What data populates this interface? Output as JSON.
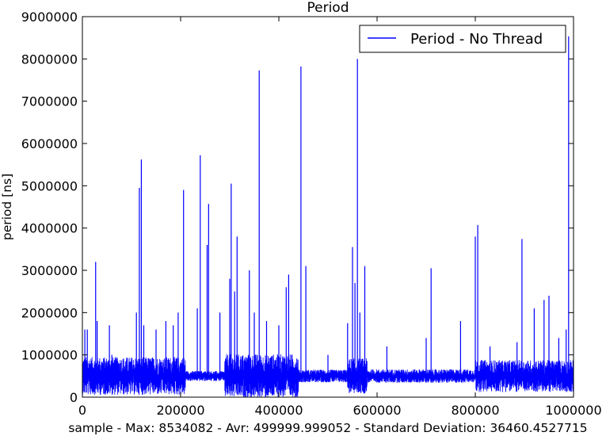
{
  "chart_data": {
    "type": "line",
    "title": "Period",
    "xlabel": "sample - Max: 8534082 - Avr: 499999.999052 - Standard Deviation: 36460.4527715",
    "ylabel": "period [ns]",
    "xlim": [
      0,
      1000000
    ],
    "ylim": [
      0,
      9000000
    ],
    "x_ticks": [
      "0",
      "200000",
      "400000",
      "600000",
      "800000",
      "1000000"
    ],
    "y_ticks": [
      "0",
      "1000000",
      "2000000",
      "3000000",
      "4000000",
      "5000000",
      "6000000",
      "7000000",
      "8000000",
      "9000000"
    ],
    "legend_position": "top-right",
    "grid": false,
    "series": [
      {
        "name": "Period - No Thread",
        "color": "#0000ff",
        "baseline": 500000,
        "spikes": [
          [
            5000,
            1600000
          ],
          [
            10000,
            1600000
          ],
          [
            27000,
            3200000
          ],
          [
            30000,
            1800000
          ],
          [
            55000,
            1700000
          ],
          [
            60000,
            1000000
          ],
          [
            110000,
            2000000
          ],
          [
            116000,
            4950000
          ],
          [
            120000,
            5620000
          ],
          [
            125000,
            1700000
          ],
          [
            150000,
            1600000
          ],
          [
            170000,
            1800000
          ],
          [
            185000,
            1700000
          ],
          [
            195000,
            2000000
          ],
          [
            206000,
            4900000
          ],
          [
            234000,
            2100000
          ],
          [
            240000,
            5720000
          ],
          [
            254000,
            3600000
          ],
          [
            257000,
            4570000
          ],
          [
            280000,
            2000000
          ],
          [
            300000,
            2800000
          ],
          [
            303000,
            5050000
          ],
          [
            310000,
            2500000
          ],
          [
            315000,
            3800000
          ],
          [
            340000,
            3000000
          ],
          [
            350000,
            2000000
          ],
          [
            360000,
            7730000
          ],
          [
            375000,
            1800000
          ],
          [
            400000,
            1700000
          ],
          [
            415000,
            2600000
          ],
          [
            420000,
            2900000
          ],
          [
            445000,
            7820000
          ],
          [
            455000,
            3100000
          ],
          [
            500000,
            1000000
          ],
          [
            540000,
            1750000
          ],
          [
            550000,
            3550000
          ],
          [
            555000,
            2700000
          ],
          [
            560000,
            8000000
          ],
          [
            565000,
            2000000
          ],
          [
            575000,
            3100000
          ],
          [
            620000,
            1200000
          ],
          [
            700000,
            1400000
          ],
          [
            710000,
            3050000
          ],
          [
            770000,
            1800000
          ],
          [
            800000,
            3800000
          ],
          [
            805000,
            4070000
          ],
          [
            830000,
            1200000
          ],
          [
            885000,
            1300000
          ],
          [
            895000,
            3740000
          ],
          [
            920000,
            2100000
          ],
          [
            940000,
            2300000
          ],
          [
            950000,
            2400000
          ],
          [
            970000,
            1400000
          ],
          [
            985000,
            1600000
          ],
          [
            990000,
            8534082
          ]
        ]
      }
    ]
  }
}
